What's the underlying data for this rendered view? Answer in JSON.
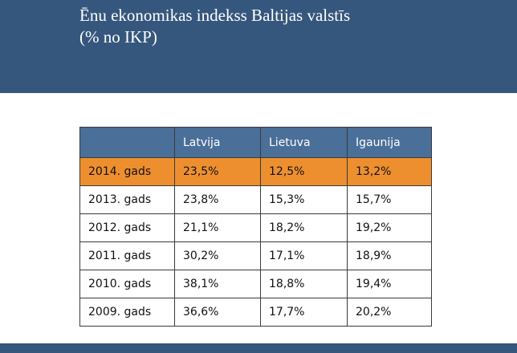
{
  "title": {
    "line1": "Ēnu ekonomikas indekss Baltijas valstīs",
    "line2": "(% no IKP)"
  },
  "colors": {
    "header_band": "#35577d",
    "table_header": "#4a6f98",
    "highlight_row": "#ee8f2f"
  },
  "table": {
    "headers": [
      "",
      "Latvija",
      "Lietuva",
      "Igaunija"
    ],
    "rows": [
      [
        "2014. gads",
        "23,5%",
        "12,5%",
        "13,2%"
      ],
      [
        "2013. gads",
        "23,8%",
        "15,3%",
        "15,7%"
      ],
      [
        "2012. gads",
        "21,1%",
        "18,2%",
        "19,2%"
      ],
      [
        "2011. gads",
        "30,2%",
        "17,1%",
        "18,9%"
      ],
      [
        "2010. gads",
        "38,1%",
        "18,8%",
        "19,4%"
      ],
      [
        "2009. gads",
        "36,6%",
        "17,7%",
        "20,2%"
      ]
    ],
    "highlighted_row": "2014. gads"
  }
}
